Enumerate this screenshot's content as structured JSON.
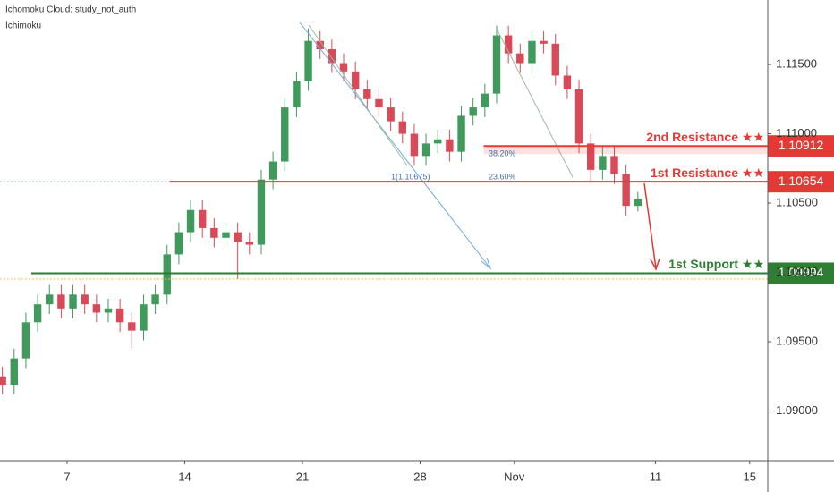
{
  "chart_data": {
    "type": "candlestick",
    "legend_lines": [
      "Ichomoku Cloud: study_not_auth",
      "Ichimoku"
    ],
    "up_color": "#3f9a5c",
    "down_color": "#d84a57",
    "xlim": [
      -2.85,
      29.77
    ],
    "xticks": [
      {
        "value": 0,
        "label": "7"
      },
      {
        "value": 5,
        "label": "14"
      },
      {
        "value": 10,
        "label": "21"
      },
      {
        "value": 15,
        "label": "28"
      },
      {
        "value": 19,
        "label": "Nov"
      },
      {
        "value": 25,
        "label": "11"
      },
      {
        "value": 29,
        "label": "15"
      }
    ],
    "ylim": [
      1.08642,
      1.11965
    ],
    "yticks": [
      {
        "value": 1.09,
        "label": "1.09000"
      },
      {
        "value": 1.095,
        "label": "1.09500"
      },
      {
        "value": 1.1,
        "label": "1.10000"
      },
      {
        "value": 1.105,
        "label": "1.10500"
      },
      {
        "value": 1.11,
        "label": "1.11000"
      },
      {
        "value": 1.115,
        "label": "1.11500"
      }
    ],
    "x": [
      -2.75,
      -2.25,
      -1.75,
      -1.25,
      -0.75,
      -0.25,
      0.25,
      0.75,
      1.25,
      1.75,
      2.25,
      2.75,
      3.25,
      3.75,
      4.25,
      4.75,
      5.25,
      5.75,
      6.25,
      6.75,
      7.25,
      7.75,
      8.25,
      8.75,
      9.25,
      9.75,
      10.25,
      10.75,
      11.25,
      11.75,
      12.25,
      12.75,
      13.25,
      13.75,
      14.25,
      14.75,
      15.25,
      15.75,
      16.25,
      16.75,
      17.25,
      17.75,
      18.25,
      18.75,
      19.25,
      19.75,
      20.25,
      20.75,
      21.25,
      21.75,
      22.25,
      22.75,
      23.25,
      23.75,
      24.25
    ],
    "open": [
      1.0925,
      1.0919,
      1.0938,
      1.0964,
      1.0977,
      1.0984,
      1.0974,
      1.0984,
      1.0977,
      1.0971,
      1.0974,
      1.0964,
      1.0958,
      1.0977,
      1.0984,
      1.1013,
      1.1029,
      1.1045,
      1.1032,
      1.1025,
      1.1029,
      1.1022,
      1.102,
      1.1067,
      1.108,
      1.1119,
      1.1138,
      1.1167,
      1.1161,
      1.1151,
      1.1145,
      1.1132,
      1.1125,
      1.1119,
      1.1109,
      1.11,
      1.1084,
      1.1093,
      1.1096,
      1.1087,
      1.1113,
      1.1119,
      1.1129,
      1.1171,
      1.1158,
      1.1151,
      1.1167,
      1.1165,
      1.1142,
      1.1132,
      1.1093,
      1.1074,
      1.1084,
      1.1071,
      1.1048
    ],
    "high": [
      1.0932,
      1.0945,
      1.0971,
      1.0984,
      1.0991,
      1.0991,
      1.0991,
      1.0991,
      1.0984,
      1.0981,
      1.0981,
      1.0971,
      1.0984,
      1.0991,
      1.102,
      1.1036,
      1.1052,
      1.1052,
      1.1039,
      1.1036,
      1.1036,
      1.1029,
      1.1074,
      1.1087,
      1.1126,
      1.1145,
      1.1176,
      1.1174,
      1.1168,
      1.1158,
      1.1152,
      1.1139,
      1.1132,
      1.1126,
      1.1116,
      1.1107,
      1.11,
      1.1103,
      1.1103,
      1.112,
      1.1126,
      1.1136,
      1.1178,
      1.1178,
      1.1165,
      1.1174,
      1.1174,
      1.1172,
      1.1149,
      1.1139,
      1.11,
      1.1091,
      1.1091,
      1.1078,
      1.1058
    ],
    "low": [
      1.0912,
      1.0912,
      1.0931,
      1.0957,
      1.097,
      1.0967,
      1.0967,
      1.097,
      1.0964,
      1.0964,
      1.0957,
      1.0945,
      1.0951,
      1.097,
      1.0977,
      1.1006,
      1.1022,
      1.1025,
      1.1018,
      1.1018,
      1.0995,
      1.1013,
      1.1013,
      1.106,
      1.1073,
      1.1112,
      1.1131,
      1.1154,
      1.1144,
      1.1138,
      1.1125,
      1.1118,
      1.1112,
      1.1102,
      1.1093,
      1.1077,
      1.1077,
      1.1086,
      1.108,
      1.108,
      1.1106,
      1.1112,
      1.1122,
      1.1151,
      1.1144,
      1.1144,
      1.1158,
      1.1135,
      1.1125,
      1.1086,
      1.1066,
      1.1067,
      1.1064,
      1.1041,
      1.1044
    ],
    "close": [
      1.0919,
      1.0938,
      1.0964,
      1.0977,
      1.0984,
      1.0974,
      1.0984,
      1.0977,
      1.0971,
      1.0974,
      1.0964,
      1.0958,
      1.0977,
      1.0984,
      1.1013,
      1.1029,
      1.1045,
      1.1032,
      1.1025,
      1.1029,
      1.1022,
      1.102,
      1.1067,
      1.108,
      1.1119,
      1.1138,
      1.1167,
      1.1161,
      1.1151,
      1.1145,
      1.1132,
      1.1125,
      1.1119,
      1.1109,
      1.11,
      1.1084,
      1.1093,
      1.1096,
      1.1087,
      1.1113,
      1.1119,
      1.1129,
      1.1171,
      1.1158,
      1.1151,
      1.1167,
      1.1165,
      1.1142,
      1.1132,
      1.1093,
      1.1074,
      1.1084,
      1.1071,
      1.1048,
      1.1053
    ],
    "levels": [
      {
        "name": "2nd Resistance ★★",
        "value": 1.10912,
        "x_start": 17.7,
        "color": "#e53935"
      },
      {
        "name": "1st Resistance ★★",
        "value": 1.10654,
        "x_start": 4.37,
        "color": "#e53935"
      },
      {
        "name": "1st Support ★★",
        "value": 1.09994,
        "x_start": -1.52,
        "color": "#2e7d32"
      }
    ],
    "annotations": [
      "38.20%",
      "23.60%",
      "1(1.10675)"
    ]
  }
}
